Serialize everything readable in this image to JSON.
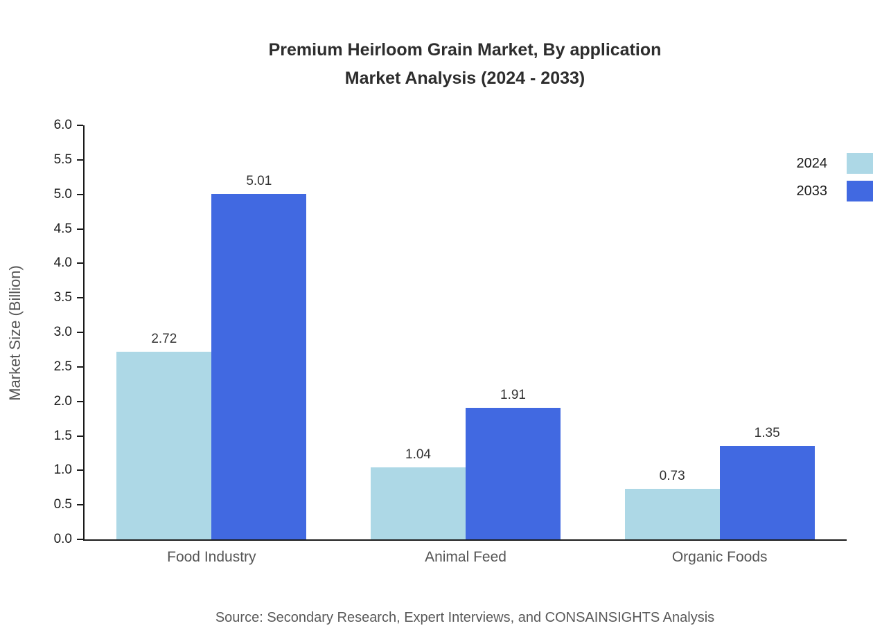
{
  "chart": {
    "title_line1": "Premium Heirloom Grain Market, By application",
    "title_line2": "Market Analysis (2024 - 2033)",
    "ylabel": "Market Size (Billion)",
    "source": "Source: Secondary Research, Expert Interviews, and CONSAINSIGHTS Analysis"
  },
  "chart_data": {
    "type": "bar",
    "title": "Premium Heirloom Grain Market, By application Market Analysis (2024 - 2033)",
    "categories": [
      "Food Industry",
      "Animal Feed",
      "Organic Foods"
    ],
    "series": [
      {
        "name": "2024",
        "color": "#add8e6",
        "values": [
          2.72,
          1.04,
          0.73
        ]
      },
      {
        "name": "2033",
        "color": "#4169e1",
        "values": [
          5.01,
          1.91,
          1.35
        ]
      }
    ],
    "xlabel": "",
    "ylabel": "Market Size (Billion)",
    "ylim": [
      0,
      6
    ],
    "ytick_step": 0.5,
    "grid": false,
    "legend_position": "top-right",
    "value_label_decimals": 2,
    "axis_color": "#1a1a1a"
  }
}
